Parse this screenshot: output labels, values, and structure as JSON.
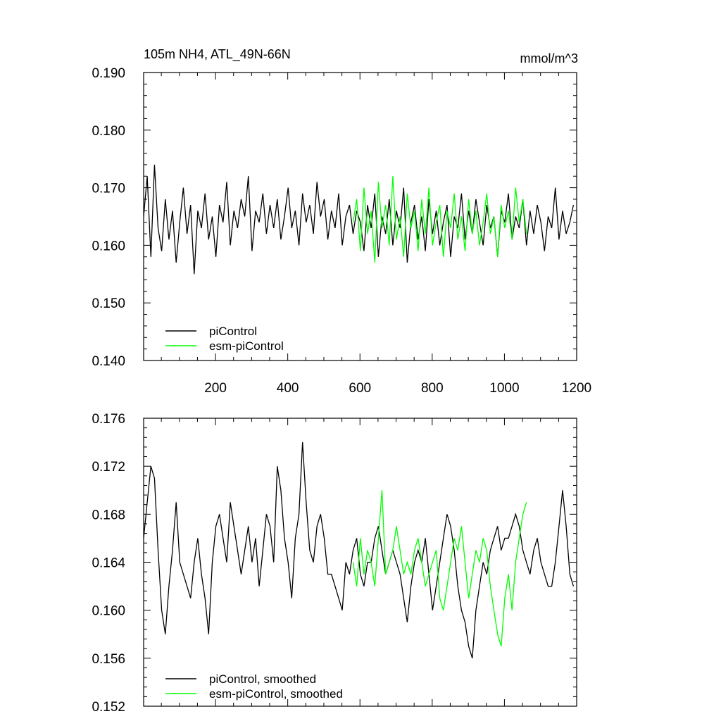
{
  "chart_data": [
    {
      "type": "line",
      "title": "105m NH4, ATL_49N-66N",
      "units": "mmol/m^3",
      "xlim": [
        1,
        1200
      ],
      "ylim": [
        0.14,
        0.19
      ],
      "x_ticks": [
        200,
        400,
        600,
        800,
        1000,
        1200
      ],
      "y_ticks": [
        "0.140",
        "0.150",
        "0.160",
        "0.170",
        "0.180",
        "0.190"
      ],
      "legend_position": "bottom-left",
      "series": [
        {
          "name": "piControl",
          "color": "#000000",
          "x_start": 1,
          "x_step": 10,
          "values": [
            0.165,
            0.172,
            0.158,
            0.174,
            0.163,
            0.159,
            0.168,
            0.161,
            0.166,
            0.157,
            0.164,
            0.17,
            0.162,
            0.167,
            0.155,
            0.166,
            0.163,
            0.169,
            0.161,
            0.165,
            0.158,
            0.167,
            0.164,
            0.171,
            0.16,
            0.166,
            0.163,
            0.168,
            0.165,
            0.172,
            0.159,
            0.166,
            0.164,
            0.169,
            0.162,
            0.167,
            0.163,
            0.168,
            0.161,
            0.165,
            0.17,
            0.163,
            0.166,
            0.16,
            0.169,
            0.164,
            0.167,
            0.162,
            0.171,
            0.165,
            0.168,
            0.161,
            0.166,
            0.163,
            0.169,
            0.16,
            0.165,
            0.167,
            0.162,
            0.166,
            0.164,
            0.159,
            0.167,
            0.163,
            0.169,
            0.158,
            0.165,
            0.162,
            0.168,
            0.16,
            0.166,
            0.163,
            0.17,
            0.157,
            0.164,
            0.167,
            0.161,
            0.165,
            0.159,
            0.168,
            0.162,
            0.166,
            0.16,
            0.164,
            0.167,
            0.158,
            0.165,
            0.163,
            0.169,
            0.161,
            0.166,
            0.162,
            0.168,
            0.164,
            0.16,
            0.167,
            0.163,
            0.165,
            0.158,
            0.166,
            0.164,
            0.169,
            0.161,
            0.165,
            0.163,
            0.168,
            0.16,
            0.166,
            0.162,
            0.167,
            0.164,
            0.159,
            0.165,
            0.163,
            0.17,
            0.161,
            0.166,
            0.162,
            0.164,
            0.167
          ]
        },
        {
          "name": "esm-piControl",
          "color": "#00ff00",
          "x_start": 581,
          "x_step": 10,
          "values": [
            0.164,
            0.168,
            0.159,
            0.17,
            0.162,
            0.166,
            0.157,
            0.171,
            0.163,
            0.167,
            0.16,
            0.172,
            0.161,
            0.165,
            0.158,
            0.169,
            0.163,
            0.166,
            0.159,
            0.168,
            0.162,
            0.17,
            0.16,
            0.164,
            0.167,
            0.158,
            0.166,
            0.163,
            0.169,
            0.161,
            0.165,
            0.159,
            0.168,
            0.162,
            0.166,
            0.16,
            0.164,
            0.169,
            0.162,
            0.165,
            0.158,
            0.167,
            0.163,
            0.166,
            0.161,
            0.17,
            0.164,
            0.168,
            0.162
          ]
        }
      ]
    },
    {
      "type": "line",
      "xlim": [
        1,
        1200
      ],
      "ylim": [
        0.152,
        0.176
      ],
      "y_ticks": [
        "0.152",
        "0.156",
        "0.160",
        "0.164",
        "0.168",
        "0.172",
        "0.176"
      ],
      "legend_position": "bottom-left",
      "series": [
        {
          "name": "piControl, smoothed",
          "color": "#000000",
          "x_start": 1,
          "x_step": 10,
          "values": [
            0.166,
            0.169,
            0.172,
            0.171,
            0.165,
            0.16,
            0.158,
            0.162,
            0.165,
            0.169,
            0.164,
            0.163,
            0.162,
            0.161,
            0.164,
            0.166,
            0.163,
            0.161,
            0.158,
            0.164,
            0.167,
            0.168,
            0.166,
            0.164,
            0.169,
            0.167,
            0.165,
            0.163,
            0.165,
            0.167,
            0.164,
            0.166,
            0.162,
            0.165,
            0.168,
            0.167,
            0.164,
            0.172,
            0.17,
            0.166,
            0.164,
            0.161,
            0.166,
            0.168,
            0.174,
            0.169,
            0.165,
            0.164,
            0.167,
            0.168,
            0.166,
            0.163,
            0.163,
            0.162,
            0.161,
            0.16,
            0.164,
            0.163,
            0.165,
            0.166,
            0.163,
            0.162,
            0.164,
            0.164,
            0.166,
            0.167,
            0.165,
            0.163,
            0.164,
            0.165,
            0.164,
            0.163,
            0.161,
            0.159,
            0.162,
            0.164,
            0.165,
            0.164,
            0.166,
            0.163,
            0.16,
            0.162,
            0.164,
            0.166,
            0.168,
            0.167,
            0.165,
            0.162,
            0.16,
            0.159,
            0.157,
            0.156,
            0.16,
            0.162,
            0.164,
            0.163,
            0.165,
            0.166,
            0.167,
            0.165,
            0.166,
            0.166,
            0.167,
            0.168,
            0.167,
            0.165,
            0.164,
            0.163,
            0.165,
            0.166,
            0.164,
            0.163,
            0.162,
            0.162,
            0.164,
            0.167,
            0.17,
            0.167,
            0.163,
            0.162
          ]
        },
        {
          "name": "esm-piControl, smoothed",
          "color": "#00ff00",
          "x_start": 581,
          "x_step": 10,
          "values": [
            0.164,
            0.162,
            0.166,
            0.163,
            0.165,
            0.164,
            0.162,
            0.166,
            0.17,
            0.163,
            0.164,
            0.165,
            0.167,
            0.165,
            0.163,
            0.164,
            0.163,
            0.165,
            0.166,
            0.164,
            0.162,
            0.163,
            0.164,
            0.165,
            0.161,
            0.16,
            0.162,
            0.164,
            0.166,
            0.165,
            0.167,
            0.164,
            0.161,
            0.163,
            0.165,
            0.164,
            0.166,
            0.165,
            0.162,
            0.16,
            0.158,
            0.157,
            0.161,
            0.163,
            0.16,
            0.164,
            0.166,
            0.168,
            0.169
          ]
        }
      ]
    }
  ]
}
